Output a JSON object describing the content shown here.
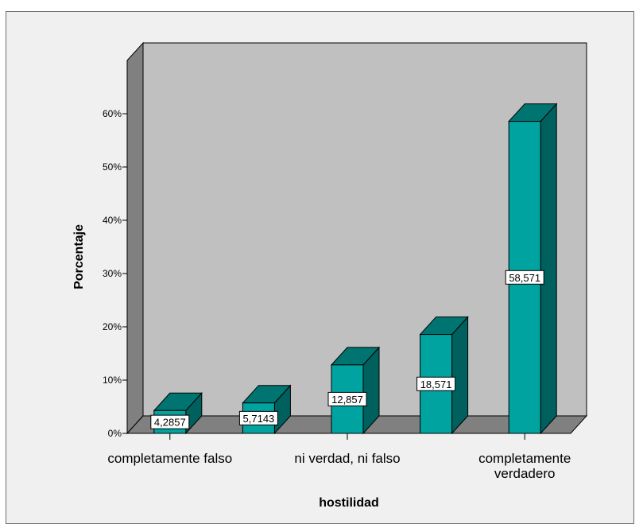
{
  "chart_data": {
    "type": "bar",
    "categories": [
      "completamente falso",
      "",
      "ni verdad, ni falso",
      "",
      "completamente verdadero"
    ],
    "category_label_lines": [
      [
        "completamente falso"
      ],
      [],
      [
        "ni verdad, ni falso"
      ],
      [],
      [
        "completamente",
        "verdadero"
      ]
    ],
    "values": [
      4.2857,
      5.7143,
      12.857,
      18.571,
      58.571
    ],
    "data_labels": [
      "4,2857",
      "5,7143",
      "12,857",
      "18,571",
      "58,571"
    ],
    "yticks": [
      "0%",
      "10%",
      "20%",
      "30%",
      "40%",
      "50%",
      "60%"
    ],
    "ylim": [
      0,
      70
    ],
    "xlabel": "hostilidad",
    "ylabel": "Porcentaje",
    "three_d": true,
    "grid": false,
    "colors": {
      "bar_front": "#00a3a0",
      "bar_side": "#00605e",
      "bar_top": "#007470",
      "back_wall": "#c0c0c0",
      "side_wall": "#808080",
      "floor": "#808080"
    }
  }
}
